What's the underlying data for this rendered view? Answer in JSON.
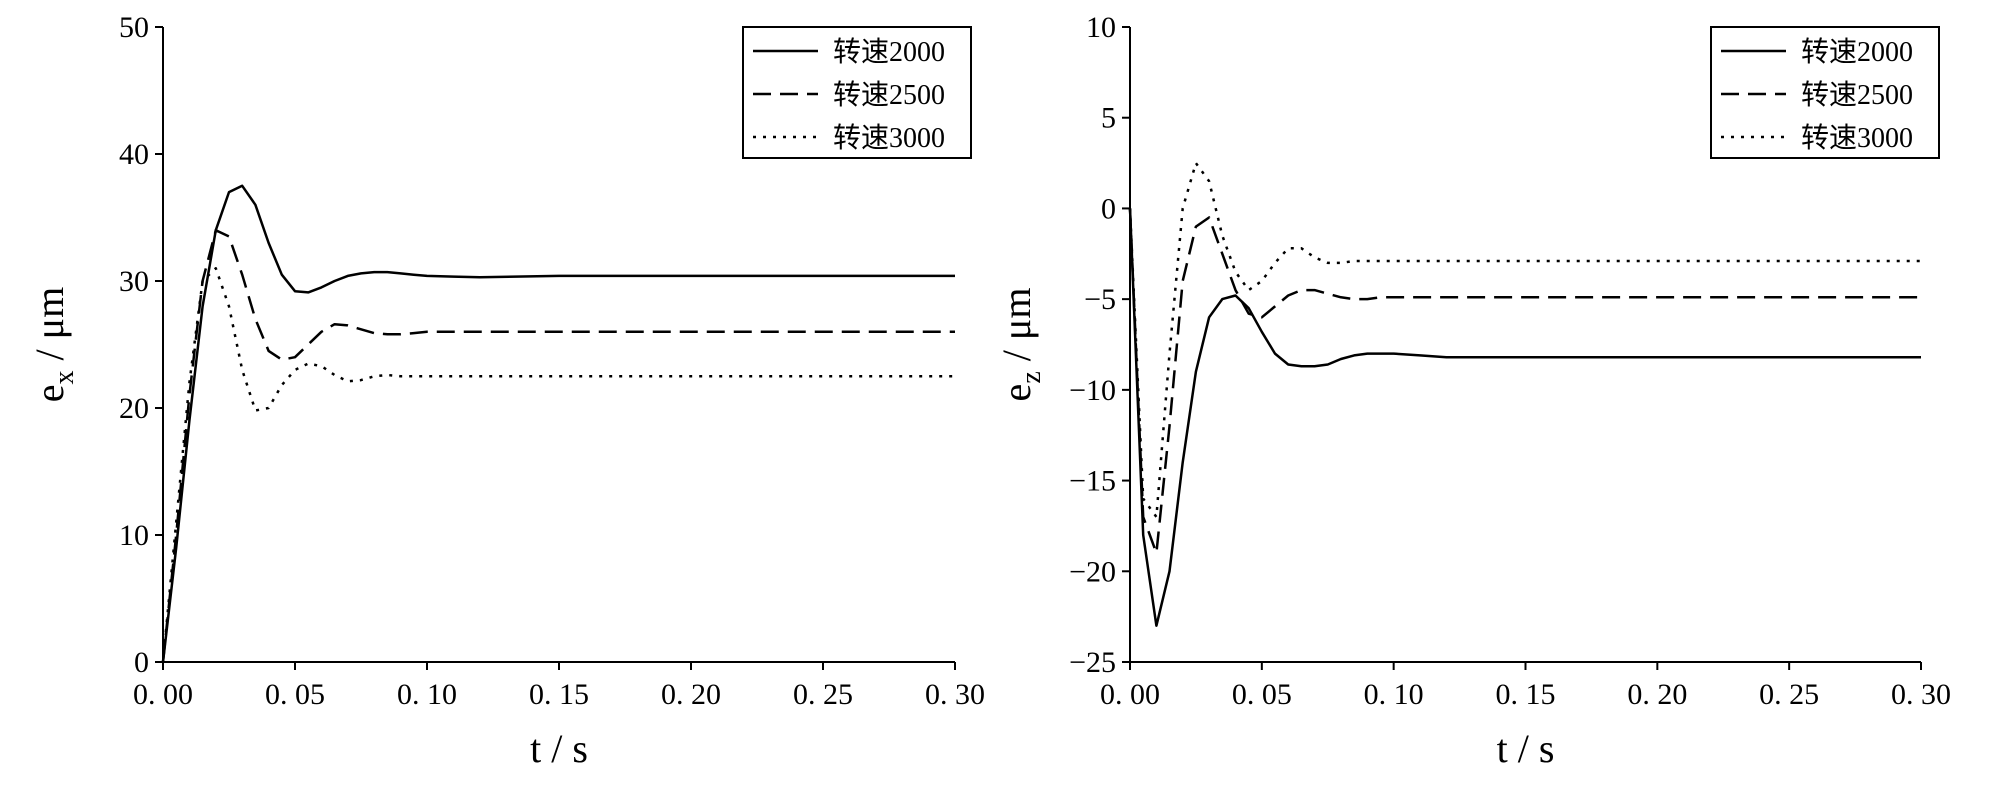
{
  "chart_data": [
    {
      "type": "line",
      "x": [
        0,
        0.005,
        0.01,
        0.015,
        0.02,
        0.025,
        0.03,
        0.035,
        0.04,
        0.045,
        0.05,
        0.055,
        0.06,
        0.065,
        0.07,
        0.075,
        0.08,
        0.085,
        0.09,
        0.095,
        0.1,
        0.11,
        0.12,
        0.15,
        0.2,
        0.25,
        0.3
      ],
      "series": [
        {
          "name": "转速2000",
          "dash": "solid",
          "values": [
            0,
            9,
            19,
            28,
            34,
            37,
            37.5,
            36,
            33,
            30.5,
            29.2,
            29.1,
            29.5,
            30,
            30.4,
            30.6,
            30.7,
            30.7,
            30.6,
            30.5,
            30.4,
            30.35,
            30.3,
            30.4,
            30.4,
            30.4,
            30.4
          ]
        },
        {
          "name": "转速2500",
          "dash": "dashed",
          "values": [
            0,
            10,
            21,
            30,
            34,
            33.5,
            30.5,
            27,
            24.5,
            23.8,
            24,
            25,
            26,
            26.6,
            26.5,
            26.2,
            25.9,
            25.8,
            25.8,
            25.9,
            26,
            26,
            26,
            26,
            26,
            26,
            26
          ]
        },
        {
          "name": "转速3000",
          "dash": "dotted",
          "values": [
            0,
            11,
            22,
            30,
            31,
            28,
            23,
            19.8,
            20,
            21.8,
            23,
            23.5,
            23.3,
            22.6,
            22.1,
            22.2,
            22.5,
            22.6,
            22.5,
            22.5,
            22.5,
            22.5,
            22.5,
            22.5,
            22.5,
            22.5,
            22.5
          ]
        }
      ],
      "xlabel": "t / s",
      "ylabel": "e_x / μm",
      "xlim": [
        0,
        0.3
      ],
      "ylim": [
        0,
        50
      ],
      "xticks": [
        "0. 00",
        "0. 05",
        "0. 10",
        "0. 15",
        "0. 20",
        "0. 25",
        "0. 30"
      ],
      "yticks": [
        "0",
        "10",
        "20",
        "30",
        "40",
        "50"
      ],
      "legend": "top-right",
      "grid": false
    },
    {
      "type": "line",
      "x": [
        0,
        0.005,
        0.01,
        0.015,
        0.02,
        0.025,
        0.03,
        0.035,
        0.04,
        0.045,
        0.05,
        0.055,
        0.06,
        0.065,
        0.07,
        0.075,
        0.08,
        0.085,
        0.09,
        0.095,
        0.1,
        0.11,
        0.12,
        0.15,
        0.2,
        0.25,
        0.3
      ],
      "series": [
        {
          "name": "转速2000",
          "dash": "solid",
          "values": [
            0,
            -18,
            -23,
            -20,
            -14,
            -9,
            -6,
            -5,
            -4.8,
            -5.5,
            -6.8,
            -8,
            -8.6,
            -8.7,
            -8.7,
            -8.6,
            -8.3,
            -8.1,
            -8,
            -8,
            -8,
            -8.1,
            -8.2,
            -8.2,
            -8.2,
            -8.2,
            -8.2
          ]
        },
        {
          "name": "转速2500",
          "dash": "dashed",
          "values": [
            0,
            -17,
            -19,
            -12,
            -4,
            -1,
            -0.5,
            -2.5,
            -4.5,
            -5.8,
            -6,
            -5.4,
            -4.8,
            -4.5,
            -4.5,
            -4.7,
            -4.9,
            -5,
            -5,
            -4.9,
            -4.9,
            -4.9,
            -4.9,
            -4.9,
            -4.9,
            -4.9,
            -4.9
          ]
        },
        {
          "name": "转速3000",
          "dash": "dotted",
          "values": [
            0,
            -16,
            -17,
            -8,
            0,
            2.5,
            1.5,
            -1.5,
            -3.5,
            -4.5,
            -4,
            -3,
            -2.2,
            -2.2,
            -2.7,
            -3,
            -3,
            -2.9,
            -2.9,
            -2.9,
            -2.9,
            -2.9,
            -2.9,
            -2.9,
            -2.9,
            -2.9,
            -2.9
          ]
        }
      ],
      "xlabel": "t / s",
      "ylabel": "e_z / μm",
      "xlim": [
        0,
        0.3
      ],
      "ylim": [
        -25,
        10
      ],
      "xticks": [
        "0. 00",
        "0. 05",
        "0. 10",
        "0. 15",
        "0. 20",
        "0. 25",
        "0. 30"
      ],
      "yticks": [
        "−25",
        "−20",
        "−15",
        "−10",
        "−5",
        "0",
        "5",
        "10"
      ],
      "legend": "top-right",
      "grid": false
    }
  ]
}
